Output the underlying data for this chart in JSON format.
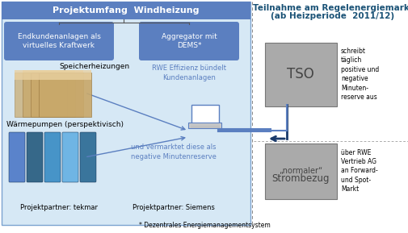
{
  "title_left": "Projektumfang  Windheizung",
  "title_right_1": "Teilnahme am Regelenergiemarkt",
  "title_right_2": "(ab Heizperiode  2011/12)",
  "box1_text": "Endkundenanlagen als\nvirtuelles Kraftwerk",
  "box2_text": "Aggregator mit\nDEMS*",
  "box3_text": "TSO",
  "box4_line1": "„normaler“",
  "box4_line2": "Strombezug",
  "label_speicher": "Speicherheizungen",
  "label_waerme": "Wärmepumpen (perspektivisch)",
  "label_rwe": "RWE Effizienz bündelt\nKundenanlagen",
  "label_vermarktet": "und vermarktet diese als\nnegative Minutenreserve",
  "label_tso_right": "schreibt\ntäglich\npositive und\nnegative\nMinuten-\nreserve aus",
  "label_normal_right": "über RWE\nVertrieb AG\nan Forward-\nund Spot-\nMarkt",
  "partner_left": "Projektpartner: tekmar",
  "partner_right": "Projektpartner: Siemens",
  "footer": "* Dezentrales Energiemanagementsystem",
  "bg_left": "#d6e8f5",
  "bg_right": "#e8f0f8",
  "title_bar_color": "#5b7fc0",
  "box1_color": "#5b7fc0",
  "box2_color": "#5b7fc0",
  "box3_color": "#aaaaaa",
  "box4_color": "#aaaaaa",
  "title_right_color": "#1a5276",
  "arrow_color": "#1a3a6b",
  "line_color": "#5b7fc0",
  "text_blue": "#5b7fc0",
  "sep_color": "#888888"
}
